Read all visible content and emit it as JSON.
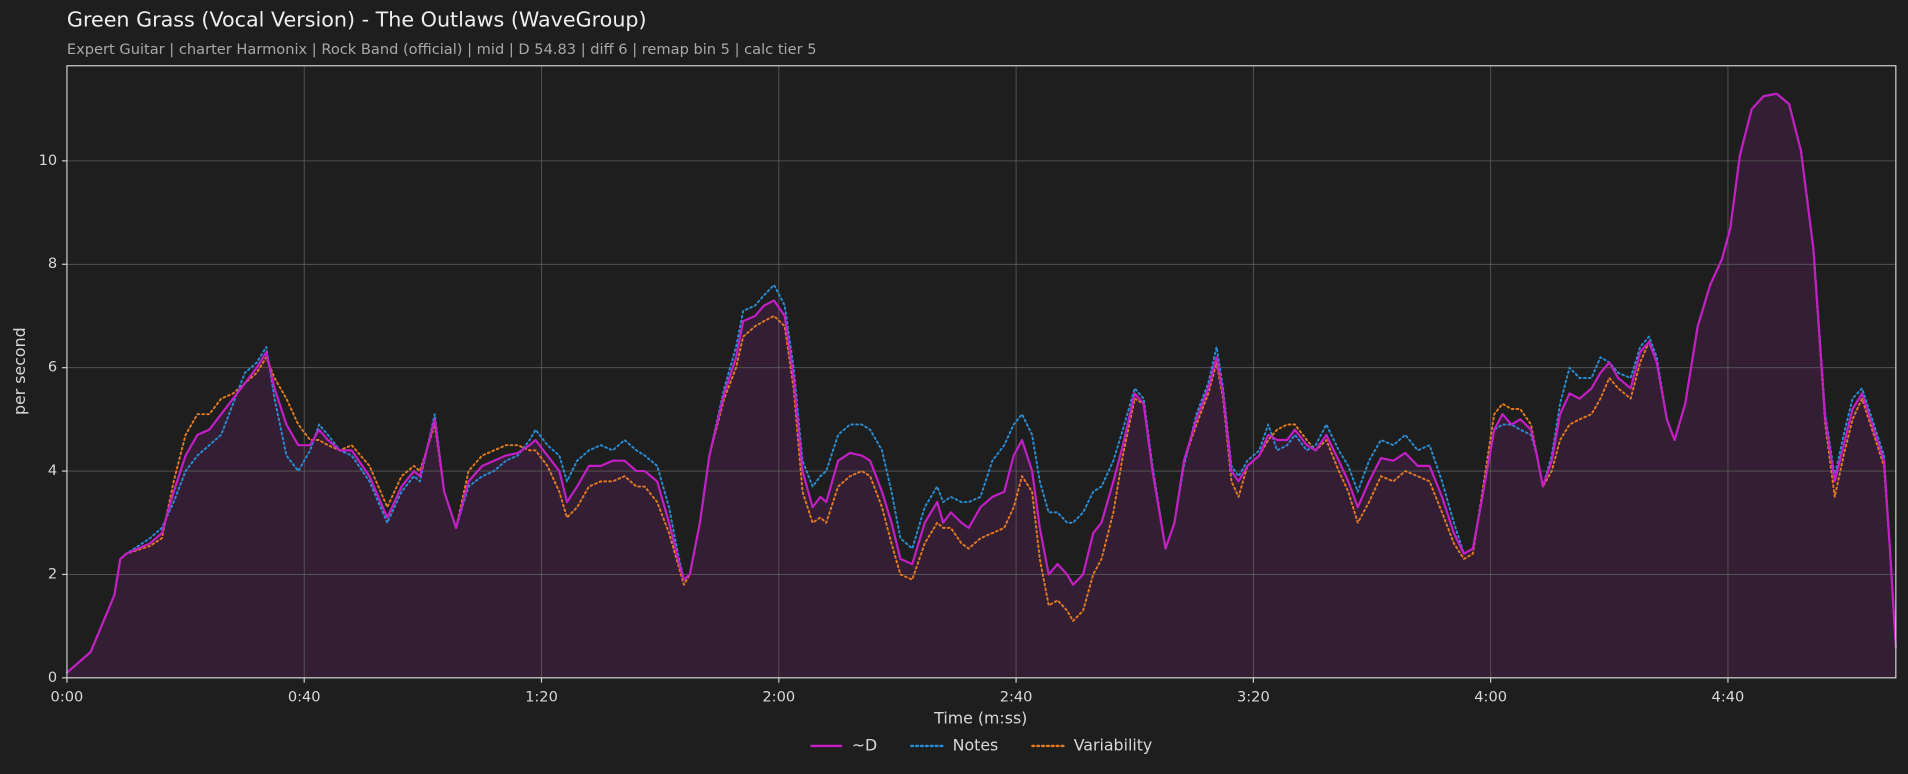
{
  "chart_data": {
    "type": "line",
    "title": "Green Grass (Vocal Version) - The Outlaws (WaveGroup)",
    "subtitle": "Expert Guitar  |  charter Harmonix  |  Rock Band (official)  |  mid  |  D 54.83  |  diff 6  |  remap bin 5  |  calc tier 5",
    "x_label": "Time (m:ss)",
    "y_label": "per second",
    "xlim": [
      0,
      308.3
    ],
    "ylim": [
      0,
      11.84
    ],
    "xticks": [
      {
        "value": 0,
        "label": "0:00"
      },
      {
        "value": 40,
        "label": "0:40"
      },
      {
        "value": 80,
        "label": "1:20"
      },
      {
        "value": 120,
        "label": "2:00"
      },
      {
        "value": 160,
        "label": "2:40"
      },
      {
        "value": 200,
        "label": "3:20"
      },
      {
        "value": 240,
        "label": "4:00"
      },
      {
        "value": 280,
        "label": "4:40"
      }
    ],
    "yticks": [
      0,
      2,
      4,
      6,
      8,
      10
    ],
    "grid": true,
    "legend": "bottom",
    "x": [
      0,
      4,
      8,
      9,
      10,
      14,
      16,
      18,
      20,
      22,
      24,
      26,
      28,
      30,
      32,
      33.6,
      35,
      37,
      39,
      41,
      42.5,
      44,
      46,
      48,
      51,
      54,
      56.4,
      58.5,
      59.5,
      62,
      63.6,
      65.6,
      67.7,
      70,
      72,
      74,
      76,
      78,
      79,
      81,
      83,
      84.3,
      86,
      88,
      90,
      92,
      94,
      96,
      97.4,
      99.5,
      101.5,
      103,
      104,
      105,
      106.7,
      108.3,
      110.8,
      112.8,
      114,
      116,
      117.5,
      119.2,
      121,
      122.5,
      124,
      125.7,
      127,
      128,
      130,
      132,
      134,
      135.4,
      137.4,
      139,
      140.5,
      142.5,
      144.6,
      146.7,
      147.7,
      149,
      150.8,
      152,
      154,
      156,
      158,
      159.6,
      161,
      162.7,
      164,
      165.5,
      167,
      168.6,
      169.6,
      171.3,
      173,
      174.4,
      176.4,
      178,
      180,
      181.5,
      183,
      185.2,
      186.7,
      188.3,
      190.4,
      192.4,
      193.8,
      194.9,
      196.3,
      197.5,
      199,
      201,
      202.5,
      204,
      205.7,
      207,
      209,
      210.5,
      212.3,
      214.4,
      216,
      217.6,
      219.5,
      221.5,
      223.6,
      225.6,
      227.7,
      229.7,
      231.8,
      233.8,
      235.5,
      237,
      238.6,
      240.6,
      242,
      243.5,
      245,
      246.8,
      247.8,
      248.8,
      250.3,
      251.7,
      253.3,
      255,
      257,
      258.5,
      260,
      261.5,
      263.6,
      265.2,
      266.7,
      268,
      269.7,
      271,
      272.8,
      274.9,
      277,
      279,
      280.4,
      282,
      284,
      286,
      288.2,
      290.3,
      292.3,
      294.4,
      296.4,
      298,
      299.5,
      301,
      302.6,
      304.6,
      306.3,
      307.3,
      308.3
    ],
    "series": [
      {
        "name": "~D",
        "color": "#c21fc4",
        "linestyle": "solid",
        "fill": true,
        "values": [
          0.1,
          0.5,
          1.6,
          2.3,
          2.4,
          2.6,
          2.8,
          3.6,
          4.3,
          4.7,
          4.8,
          5.1,
          5.4,
          5.7,
          6.0,
          6.3,
          5.6,
          4.9,
          4.5,
          4.5,
          4.8,
          4.6,
          4.4,
          4.4,
          3.9,
          3.1,
          3.7,
          4.0,
          3.9,
          5.0,
          3.6,
          2.9,
          3.8,
          4.1,
          4.2,
          4.3,
          4.35,
          4.5,
          4.6,
          4.3,
          4.0,
          3.4,
          3.7,
          4.1,
          4.1,
          4.2,
          4.2,
          4.0,
          4.0,
          3.8,
          3.0,
          2.3,
          1.9,
          2.0,
          3.0,
          4.3,
          5.5,
          6.2,
          6.9,
          7.0,
          7.2,
          7.3,
          7.0,
          5.8,
          4.0,
          3.3,
          3.5,
          3.4,
          4.2,
          4.35,
          4.3,
          4.2,
          3.6,
          3.0,
          2.3,
          2.2,
          3.0,
          3.4,
          3.0,
          3.2,
          3.0,
          2.9,
          3.3,
          3.5,
          3.6,
          4.3,
          4.6,
          4.0,
          2.9,
          2.0,
          2.2,
          2.0,
          1.8,
          2.0,
          2.8,
          3.0,
          3.8,
          4.5,
          5.5,
          5.3,
          4.0,
          2.5,
          3.0,
          4.2,
          5.0,
          5.6,
          6.2,
          5.5,
          4.0,
          3.8,
          4.1,
          4.3,
          4.7,
          4.6,
          4.6,
          4.8,
          4.5,
          4.4,
          4.7,
          4.2,
          3.8,
          3.3,
          3.8,
          4.25,
          4.2,
          4.35,
          4.1,
          4.1,
          3.5,
          2.8,
          2.4,
          2.5,
          3.5,
          4.8,
          5.1,
          4.9,
          5.0,
          4.8,
          4.3,
          3.7,
          4.2,
          5.1,
          5.5,
          5.4,
          5.6,
          5.9,
          6.1,
          5.8,
          5.6,
          6.3,
          6.5,
          6.1,
          5.0,
          4.6,
          5.3,
          6.8,
          7.6,
          8.1,
          8.7,
          10.1,
          11.0,
          11.25,
          11.3,
          11.1,
          10.2,
          8.3,
          5.0,
          3.8,
          4.5,
          5.2,
          5.5,
          4.8,
          4.2,
          2.5,
          0.6
        ]
      },
      {
        "name": "Notes",
        "color": "#2a8bd1",
        "linestyle": "dotted",
        "fill": false,
        "values": [
          0.1,
          0.5,
          1.6,
          2.3,
          2.4,
          2.7,
          2.9,
          3.4,
          4.0,
          4.3,
          4.5,
          4.7,
          5.3,
          5.9,
          6.1,
          6.4,
          5.4,
          4.3,
          4.0,
          4.4,
          4.9,
          4.7,
          4.4,
          4.3,
          3.8,
          3.0,
          3.6,
          3.9,
          3.8,
          5.1,
          3.6,
          2.9,
          3.7,
          3.9,
          4.0,
          4.2,
          4.3,
          4.6,
          4.8,
          4.5,
          4.3,
          3.8,
          4.2,
          4.4,
          4.5,
          4.4,
          4.6,
          4.4,
          4.3,
          4.1,
          3.3,
          2.4,
          1.9,
          2.0,
          3.0,
          4.3,
          5.6,
          6.4,
          7.1,
          7.2,
          7.4,
          7.6,
          7.2,
          6.0,
          4.2,
          3.7,
          3.9,
          4.0,
          4.7,
          4.9,
          4.9,
          4.8,
          4.4,
          3.6,
          2.7,
          2.5,
          3.3,
          3.7,
          3.4,
          3.5,
          3.4,
          3.4,
          3.5,
          4.2,
          4.5,
          4.9,
          5.1,
          4.7,
          3.8,
          3.2,
          3.2,
          3.0,
          3.0,
          3.2,
          3.6,
          3.7,
          4.2,
          4.8,
          5.6,
          5.4,
          4.1,
          2.5,
          3.0,
          4.1,
          5.1,
          5.7,
          6.4,
          5.6,
          4.1,
          3.9,
          4.2,
          4.4,
          4.9,
          4.4,
          4.5,
          4.7,
          4.4,
          4.5,
          4.9,
          4.4,
          4.1,
          3.6,
          4.2,
          4.6,
          4.5,
          4.7,
          4.4,
          4.5,
          3.8,
          3.0,
          2.4,
          2.5,
          3.5,
          4.8,
          4.9,
          4.9,
          4.8,
          4.7,
          4.3,
          3.7,
          4.3,
          5.3,
          6.0,
          5.8,
          5.8,
          6.2,
          6.1,
          5.9,
          5.8,
          6.4,
          6.6,
          6.2,
          5.0,
          4.6,
          5.3,
          6.8,
          7.6,
          8.1,
          8.7,
          10.1,
          11.0,
          11.25,
          11.3,
          11.1,
          10.2,
          8.3,
          5.1,
          3.9,
          4.7,
          5.4,
          5.6,
          4.9,
          4.3,
          2.5,
          0.6
        ]
      },
      {
        "name": "Variability",
        "color": "#e07a22",
        "linestyle": "dotted",
        "fill": false,
        "values": [
          0.1,
          0.5,
          1.6,
          2.3,
          2.4,
          2.55,
          2.7,
          3.8,
          4.7,
          5.1,
          5.1,
          5.4,
          5.5,
          5.7,
          5.9,
          6.2,
          5.8,
          5.4,
          4.9,
          4.6,
          4.6,
          4.5,
          4.4,
          4.5,
          4.1,
          3.3,
          3.9,
          4.1,
          4.0,
          4.9,
          3.6,
          2.9,
          4.0,
          4.3,
          4.4,
          4.5,
          4.5,
          4.4,
          4.4,
          4.1,
          3.6,
          3.1,
          3.3,
          3.7,
          3.8,
          3.8,
          3.9,
          3.7,
          3.7,
          3.4,
          2.8,
          2.2,
          1.8,
          2.0,
          3.0,
          4.3,
          5.4,
          6.0,
          6.6,
          6.8,
          6.9,
          7.0,
          6.8,
          5.6,
          3.6,
          3.0,
          3.1,
          3.0,
          3.7,
          3.9,
          4.0,
          3.9,
          3.3,
          2.6,
          2.0,
          1.9,
          2.6,
          3.0,
          2.9,
          2.9,
          2.6,
          2.5,
          2.7,
          2.8,
          2.9,
          3.3,
          3.9,
          3.6,
          2.3,
          1.4,
          1.5,
          1.3,
          1.1,
          1.3,
          2.0,
          2.3,
          3.2,
          4.3,
          5.4,
          5.3,
          4.0,
          2.5,
          3.0,
          4.2,
          4.9,
          5.5,
          6.1,
          5.4,
          3.8,
          3.5,
          4.1,
          4.3,
          4.6,
          4.8,
          4.9,
          4.9,
          4.6,
          4.4,
          4.6,
          4.0,
          3.6,
          3.0,
          3.4,
          3.9,
          3.8,
          4.0,
          3.9,
          3.8,
          3.2,
          2.6,
          2.3,
          2.4,
          3.6,
          5.1,
          5.3,
          5.2,
          5.2,
          4.9,
          4.3,
          3.7,
          4.0,
          4.6,
          4.9,
          5.0,
          5.1,
          5.4,
          5.8,
          5.6,
          5.4,
          6.1,
          6.5,
          6.1,
          5.0,
          4.6,
          5.3,
          6.8,
          7.6,
          8.1,
          8.7,
          10.1,
          11.0,
          11.25,
          11.3,
          11.1,
          10.2,
          8.3,
          4.9,
          3.5,
          4.3,
          5.0,
          5.4,
          4.7,
          4.1,
          2.5,
          0.6
        ]
      }
    ]
  }
}
